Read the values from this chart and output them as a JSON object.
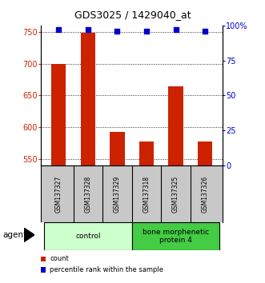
{
  "title": "GDS3025 / 1429040_at",
  "samples": [
    "GSM137327",
    "GSM137328",
    "GSM137329",
    "GSM137318",
    "GSM137325",
    "GSM137326"
  ],
  "bar_values": [
    700,
    748,
    593,
    578,
    665,
    578
  ],
  "percentile_values": [
    97,
    97,
    96,
    96,
    97,
    96
  ],
  "bar_color": "#cc2200",
  "dot_color": "#0000cc",
  "ylim_left": [
    540,
    760
  ],
  "ylim_right": [
    0,
    100
  ],
  "yticks_left": [
    550,
    600,
    650,
    700,
    750
  ],
  "yticks_right": [
    0,
    25,
    50,
    75,
    100
  ],
  "yticklabels_right": [
    "0",
    "25",
    "50",
    "75",
    "100%"
  ],
  "groups": [
    {
      "label": "control",
      "indices": [
        0,
        1,
        2
      ],
      "color": "#ccffcc"
    },
    {
      "label": "bone morphenetic\nprotein 4",
      "indices": [
        3,
        4,
        5
      ],
      "color": "#44cc44"
    }
  ],
  "agent_label": "agent",
  "legend_items": [
    {
      "color": "#cc2200",
      "label": "count"
    },
    {
      "color": "#0000cc",
      "label": "percentile rank within the sample"
    }
  ],
  "bar_width": 0.5,
  "background_color": "#ffffff",
  "plot_bg": "#ffffff",
  "label_area_bg": "#c8c8c8",
  "base_value": 540
}
